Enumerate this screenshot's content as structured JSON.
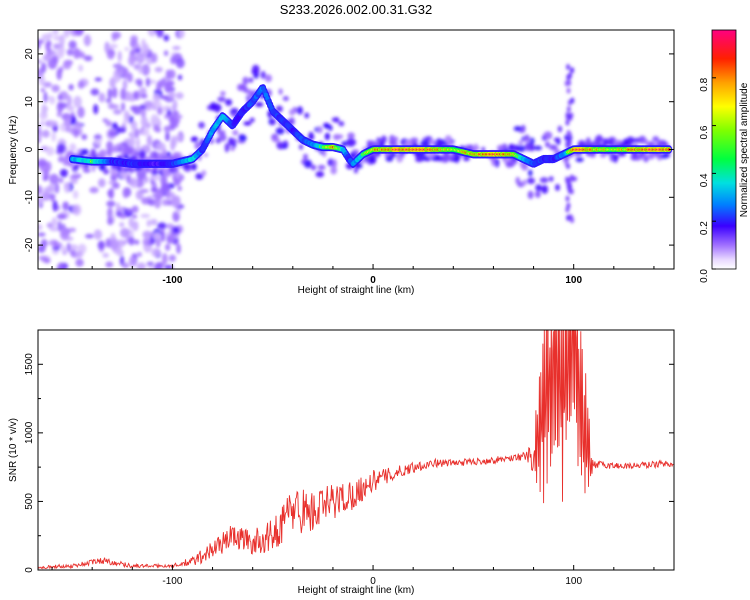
{
  "chart_data": [
    {
      "type": "heatmap",
      "title": "S233.2026.002.00.31.G32",
      "xlabel": "Height of straight line (km)",
      "ylabel": "Frequency (Hz)",
      "xlim": [
        -167,
        150
      ],
      "ylim": [
        -25,
        25
      ],
      "x_ticks": [
        -100,
        0,
        100
      ],
      "x_tick_labels": [
        "-100",
        "0",
        "100"
      ],
      "y_ticks": [
        -20,
        -10,
        0,
        10,
        20
      ],
      "y_tick_labels": [
        "-20",
        "-10",
        "0",
        "10",
        "20"
      ],
      "colorbar": {
        "label": "Normalized spectral amplitude",
        "range": [
          0,
          1
        ],
        "ticks": [
          0.0,
          0.2,
          0.4,
          0.6,
          0.8
        ],
        "tick_labels": [
          "0.0",
          "0.2",
          "0.4",
          "0.6",
          "0.8"
        ]
      },
      "ridge_trace": {
        "x": [
          -150,
          -140,
          -130,
          -120,
          -110,
          -100,
          -95,
          -90,
          -85,
          -80,
          -75,
          -70,
          -65,
          -60,
          -55,
          -50,
          -45,
          -40,
          -35,
          -30,
          -25,
          -20,
          -15,
          -12,
          -10,
          -5,
          0,
          10,
          20,
          30,
          40,
          50,
          60,
          70,
          75,
          80,
          85,
          90,
          95,
          100,
          105,
          110,
          120,
          130,
          140,
          148
        ],
        "y": [
          -2,
          -2.5,
          -2.5,
          -3,
          -3,
          -3,
          -2.5,
          -2,
          0,
          4,
          7,
          5,
          8,
          10,
          13,
          8,
          6,
          4,
          2,
          1,
          0.5,
          0.5,
          0,
          -2,
          -3,
          -1,
          0,
          0,
          0,
          0,
          0,
          -1,
          -1,
          -1,
          -2,
          -3,
          -2,
          -2,
          -1,
          0,
          0,
          0,
          0,
          0,
          0,
          0
        ],
        "amplitude": [
          0.45,
          0.6,
          0.3,
          0.3,
          0.25,
          0.3,
          0.4,
          0.55,
          0.3,
          0.45,
          0.5,
          0.3,
          0.3,
          0.35,
          0.4,
          0.35,
          0.3,
          0.3,
          0.35,
          0.4,
          0.6,
          0.9,
          0.5,
          0.3,
          0.4,
          0.6,
          0.8,
          0.95,
          1.0,
          0.9,
          0.7,
          0.85,
          0.95,
          0.8,
          0.5,
          0.35,
          0.3,
          0.3,
          0.4,
          0.95,
          1.0,
          0.8,
          0.7,
          0.9,
          1.0,
          0.95
        ]
      }
    },
    {
      "type": "line",
      "xlabel": "Height of straight line (km)",
      "ylabel": "SNR (10 * v/v)",
      "xlim": [
        -167,
        150
      ],
      "ylim": [
        0,
        1750
      ],
      "x_ticks": [
        -100,
        0,
        100
      ],
      "x_tick_labels": [
        "-100",
        "0",
        "100"
      ],
      "y_ticks": [
        0,
        500,
        1000,
        1500
      ],
      "y_tick_labels": [
        "0",
        "500",
        "1000",
        "1500"
      ],
      "series": [
        {
          "name": "SNR",
          "color": "#e8302c",
          "x": [
            -167,
            -150,
            -135,
            -120,
            -100,
            -90,
            -80,
            -70,
            -60,
            -50,
            -40,
            -30,
            -20,
            -10,
            0,
            10,
            20,
            30,
            40,
            50,
            60,
            70,
            75,
            80,
            85,
            90,
            95,
            100,
            105,
            110,
            120,
            130,
            140,
            150
          ],
          "values": [
            20,
            30,
            70,
            30,
            30,
            60,
            150,
            250,
            200,
            250,
            450,
            420,
            500,
            550,
            650,
            700,
            750,
            780,
            780,
            790,
            800,
            820,
            830,
            800,
            1200,
            1500,
            1300,
            1700,
            1000,
            770,
            760,
            760,
            770,
            780
          ],
          "noise": [
            10,
            15,
            25,
            15,
            10,
            40,
            70,
            90,
            90,
            120,
            180,
            160,
            140,
            110,
            80,
            50,
            40,
            30,
            25,
            25,
            25,
            25,
            30,
            120,
            650,
            700,
            700,
            700,
            600,
            30,
            25,
            25,
            25,
            25
          ]
        }
      ]
    }
  ]
}
